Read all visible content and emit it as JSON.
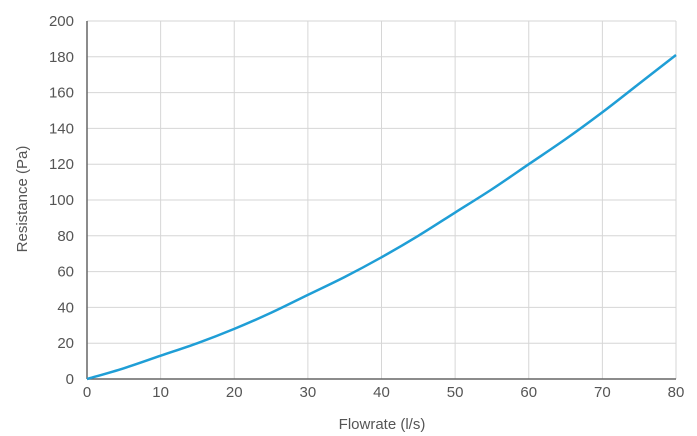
{
  "chart_data": {
    "type": "line",
    "title": "",
    "xlabel": "Flowrate (l/s)",
    "ylabel": "Resistance (Pa)",
    "xlim": [
      0,
      80
    ],
    "ylim": [
      0,
      200
    ],
    "x_ticks": [
      0,
      10,
      20,
      30,
      40,
      50,
      60,
      70,
      80
    ],
    "y_ticks": [
      0,
      20,
      40,
      60,
      80,
      100,
      120,
      140,
      160,
      180,
      200
    ],
    "grid": true,
    "legend": "none",
    "series": [
      {
        "color": "#1f9ed6",
        "x": [
          0,
          5,
          10,
          15,
          20,
          25,
          30,
          35,
          40,
          45,
          50,
          55,
          60,
          65,
          70,
          75,
          80
        ],
        "y": [
          0,
          6,
          13,
          20,
          28,
          37,
          47,
          57,
          68,
          80,
          93,
          106,
          120,
          134,
          149,
          165,
          181
        ]
      }
    ]
  }
}
